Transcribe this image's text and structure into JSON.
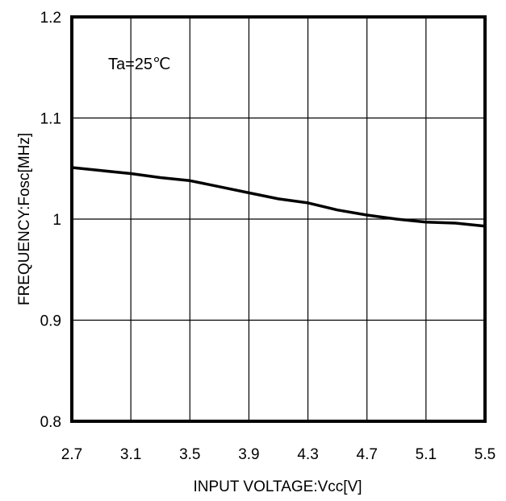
{
  "chart_data": {
    "type": "line",
    "title": "",
    "xlabel": "INPUT VOLTAGE:Vcc[V]",
    "ylabel": "FREQUENCY:Fosc[MHz]",
    "xlim": [
      2.7,
      5.5
    ],
    "ylim": [
      0.8,
      1.2
    ],
    "xticks": [
      2.7,
      3.1,
      3.5,
      3.9,
      4.3,
      4.7,
      5.1,
      5.5
    ],
    "xtick_labels": [
      "2.7",
      "3.1",
      "3.5",
      "3.9",
      "4.3",
      "4.7",
      "5.1",
      "5.5"
    ],
    "yticks": [
      0.8,
      0.9,
      1.0,
      1.1,
      1.2
    ],
    "ytick_labels": [
      "0.8",
      "0.9",
      "1",
      "1.1",
      "1.2"
    ],
    "grid": true,
    "annotation": "Ta=25℃",
    "series": [
      {
        "x": [
          2.7,
          2.9,
          3.1,
          3.3,
          3.5,
          3.7,
          3.9,
          4.1,
          4.3,
          4.5,
          4.7,
          4.9,
          5.1,
          5.3,
          5.5
        ],
        "y": [
          1.051,
          1.048,
          1.045,
          1.041,
          1.038,
          1.032,
          1.026,
          1.02,
          1.016,
          1.009,
          1.004,
          1.0,
          0.997,
          0.996,
          0.993
        ]
      }
    ],
    "line_color": "#000000"
  }
}
